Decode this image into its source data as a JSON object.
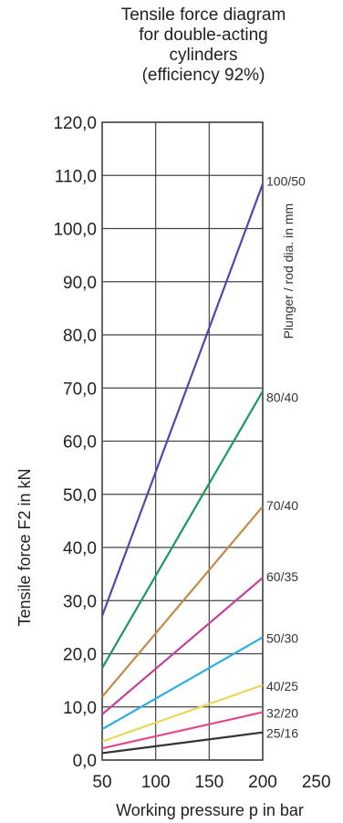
{
  "chart_data": {
    "type": "line",
    "title_lines": [
      "Tensile force diagram",
      "for double-acting",
      "cylinders",
      "(efficiency 92%)"
    ],
    "xlabel": "Working pressure p in bar",
    "ylabel": "Tensile force F2 in kN",
    "side_note": "Plunger / rod dia. in mm",
    "xlim": [
      50,
      250
    ],
    "ylim": [
      0,
      120
    ],
    "x_plot_max": 200,
    "x_ticks": [
      "50",
      "100",
      "150",
      "200",
      "250"
    ],
    "y_ticks": [
      "0,0",
      "10,0",
      "20,0",
      "30,0",
      "40,0",
      "50,0",
      "60,0",
      "70,0",
      "80,0",
      "90,0",
      "100,0",
      "110,0",
      "120,0"
    ],
    "grid": true,
    "series": [
      {
        "name": "100/50",
        "x": [
          50,
          200
        ],
        "values": [
          27.1,
          108.4
        ],
        "color": "#4a4aa8"
      },
      {
        "name": "80/40",
        "x": [
          50,
          200
        ],
        "values": [
          17.3,
          69.4
        ],
        "color": "#1a9a5a"
      },
      {
        "name": "70/40",
        "x": [
          50,
          200
        ],
        "values": [
          11.9,
          47.7
        ],
        "color": "#c08a48"
      },
      {
        "name": "60/35",
        "x": [
          50,
          200
        ],
        "values": [
          8.6,
          34.3
        ],
        "color": "#c0409a"
      },
      {
        "name": "50/30",
        "x": [
          50,
          200
        ],
        "values": [
          5.8,
          23.1
        ],
        "color": "#2aaee0"
      },
      {
        "name": "40/25",
        "x": [
          50,
          200
        ],
        "values": [
          3.5,
          14.1
        ],
        "color": "#e8d85a"
      },
      {
        "name": "32/20",
        "x": [
          50,
          200
        ],
        "values": [
          2.2,
          9.0
        ],
        "color": "#e04a8a"
      },
      {
        "name": "25/16",
        "x": [
          50,
          200
        ],
        "values": [
          1.3,
          5.2
        ],
        "color": "#333333"
      }
    ]
  }
}
